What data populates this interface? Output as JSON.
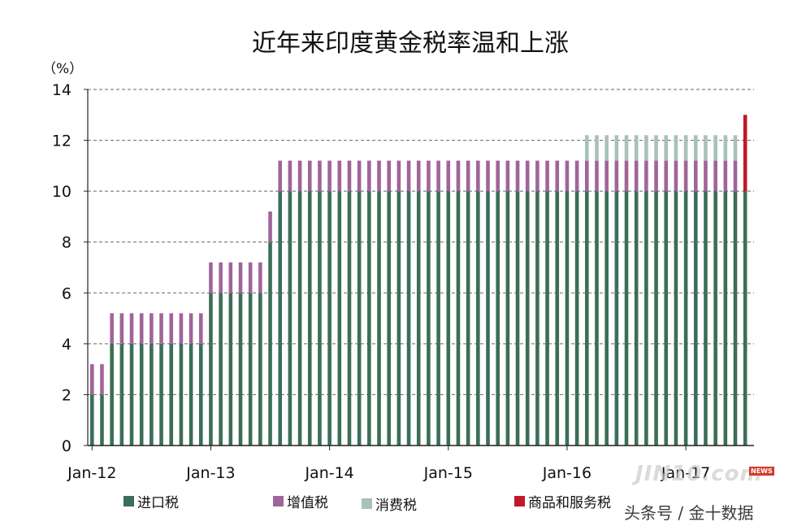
{
  "chart_data": {
    "type": "bar",
    "stacked": true,
    "title": "近年来印度黄金税率温和上涨",
    "y_unit": "（%）",
    "ylim": [
      0,
      14
    ],
    "yticks": [
      0,
      2,
      4,
      6,
      8,
      10,
      12,
      14
    ],
    "xtick_labels": [
      "Jan-12",
      "Jan-13",
      "Jan-14",
      "Jan-15",
      "Jan-16",
      "Jan-17"
    ],
    "grid": "horizontal-dashed",
    "legend_placement": "bottom",
    "x_start": "2012-01",
    "categories": [
      "2012-01",
      "2012-02",
      "2012-03",
      "2012-04",
      "2012-05",
      "2012-06",
      "2012-07",
      "2012-08",
      "2012-09",
      "2012-10",
      "2012-11",
      "2012-12",
      "2013-01",
      "2013-02",
      "2013-03",
      "2013-04",
      "2013-05",
      "2013-06",
      "2013-07",
      "2013-08",
      "2013-09",
      "2013-10",
      "2013-11",
      "2013-12",
      "2014-01",
      "2014-02",
      "2014-03",
      "2014-04",
      "2014-05",
      "2014-06",
      "2014-07",
      "2014-08",
      "2014-09",
      "2014-10",
      "2014-11",
      "2014-12",
      "2015-01",
      "2015-02",
      "2015-03",
      "2015-04",
      "2015-05",
      "2015-06",
      "2015-07",
      "2015-08",
      "2015-09",
      "2015-10",
      "2015-11",
      "2015-12",
      "2016-01",
      "2016-02",
      "2016-03",
      "2016-04",
      "2016-05",
      "2016-06",
      "2016-07",
      "2016-08",
      "2016-09",
      "2016-10",
      "2016-11",
      "2016-12",
      "2017-01",
      "2017-02",
      "2017-03",
      "2017-04",
      "2017-05",
      "2017-06",
      "2017-07"
    ],
    "series": [
      {
        "name": "进口税",
        "color": "#3c6e57",
        "values": [
          2,
          2,
          4,
          4,
          4,
          4,
          4,
          4,
          4,
          4,
          4,
          4,
          6,
          6,
          6,
          6,
          6,
          6,
          8,
          10,
          10,
          10,
          10,
          10,
          10,
          10,
          10,
          10,
          10,
          10,
          10,
          10,
          10,
          10,
          10,
          10,
          10,
          10,
          10,
          10,
          10,
          10,
          10,
          10,
          10,
          10,
          10,
          10,
          10,
          10,
          10,
          10,
          10,
          10,
          10,
          10,
          10,
          10,
          10,
          10,
          10,
          10,
          10,
          10,
          10,
          10,
          10
        ]
      },
      {
        "name": "增值税",
        "color": "#a0649a",
        "values": [
          1.2,
          1.2,
          1.2,
          1.2,
          1.2,
          1.2,
          1.2,
          1.2,
          1.2,
          1.2,
          1.2,
          1.2,
          1.2,
          1.2,
          1.2,
          1.2,
          1.2,
          1.2,
          1.2,
          1.2,
          1.2,
          1.2,
          1.2,
          1.2,
          1.2,
          1.2,
          1.2,
          1.2,
          1.2,
          1.2,
          1.2,
          1.2,
          1.2,
          1.2,
          1.2,
          1.2,
          1.2,
          1.2,
          1.2,
          1.2,
          1.2,
          1.2,
          1.2,
          1.2,
          1.2,
          1.2,
          1.2,
          1.2,
          1.2,
          1.2,
          1.2,
          1.2,
          1.2,
          1.2,
          1.2,
          1.2,
          1.2,
          1.2,
          1.2,
          1.2,
          1.2,
          1.2,
          1.2,
          1.2,
          1.2,
          1.2,
          0
        ]
      },
      {
        "name": "消费税",
        "color": "#a9c1b6",
        "values": [
          0,
          0,
          0,
          0,
          0,
          0,
          0,
          0,
          0,
          0,
          0,
          0,
          0,
          0,
          0,
          0,
          0,
          0,
          0,
          0,
          0,
          0,
          0,
          0,
          0,
          0,
          0,
          0,
          0,
          0,
          0,
          0,
          0,
          0,
          0,
          0,
          0,
          0,
          0,
          0,
          0,
          0,
          0,
          0,
          0,
          0,
          0,
          0,
          0,
          0,
          1,
          1,
          1,
          1,
          1,
          1,
          1,
          1,
          1,
          1,
          1,
          1,
          1,
          1,
          1,
          1,
          0
        ]
      },
      {
        "name": "商品和服务税",
        "color": "#c0172b",
        "values": [
          0,
          0,
          0,
          0,
          0,
          0,
          0,
          0,
          0,
          0,
          0,
          0,
          0,
          0,
          0,
          0,
          0,
          0,
          0,
          0,
          0,
          0,
          0,
          0,
          0,
          0,
          0,
          0,
          0,
          0,
          0,
          0,
          0,
          0,
          0,
          0,
          0,
          0,
          0,
          0,
          0,
          0,
          0,
          0,
          0,
          0,
          0,
          0,
          0,
          0,
          0,
          0,
          0,
          0,
          0,
          0,
          0,
          0,
          0,
          0,
          0,
          0,
          0,
          0,
          0,
          0,
          3
        ]
      }
    ]
  },
  "watermark": {
    "logo_text": "JIN10.com",
    "badge": "NEWS",
    "source": "头条号 / 金十数据"
  }
}
